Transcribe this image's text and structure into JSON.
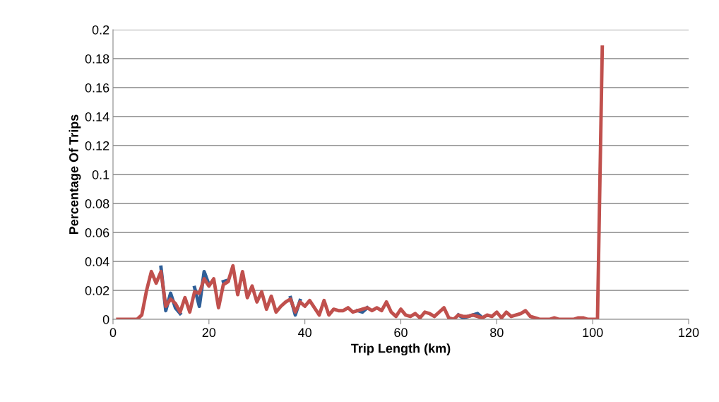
{
  "chart_data": {
    "type": "line",
    "xlabel": "Trip Length (km)",
    "ylabel": "Percentage Of Trips",
    "x": [
      1,
      2,
      3,
      4,
      5,
      6,
      7,
      8,
      9,
      10,
      11,
      12,
      13,
      14,
      15,
      16,
      17,
      18,
      19,
      20,
      21,
      22,
      23,
      24,
      25,
      26,
      27,
      28,
      29,
      30,
      31,
      32,
      33,
      34,
      35,
      36,
      37,
      38,
      39,
      40,
      41,
      42,
      43,
      44,
      45,
      46,
      47,
      48,
      49,
      50,
      51,
      52,
      53,
      54,
      55,
      56,
      57,
      58,
      59,
      60,
      61,
      62,
      63,
      64,
      65,
      66,
      67,
      68,
      69,
      70,
      71,
      72,
      73,
      74,
      75,
      76,
      77,
      78,
      79,
      80,
      81,
      82,
      83,
      84,
      85,
      86,
      87,
      88,
      89,
      90,
      91,
      92,
      93,
      94,
      95,
      96,
      97,
      98,
      99,
      100,
      101,
      102
    ],
    "series": [
      {
        "color": "#2f5f98",
        "values": [
          null,
          null,
          null,
          null,
          null,
          null,
          null,
          null,
          null,
          0.036,
          0.006,
          0.018,
          0.008,
          0.004,
          null,
          null,
          0.022,
          0.009,
          0.033,
          0.024,
          null,
          null,
          0.026,
          0.027,
          null,
          null,
          null,
          null,
          null,
          null,
          null,
          null,
          null,
          null,
          null,
          null,
          0.015,
          0.003,
          0.013,
          null,
          null,
          null,
          null,
          null,
          null,
          null,
          null,
          null,
          null,
          null,
          0.006,
          0.005,
          0.008,
          null,
          null,
          null,
          null,
          null,
          null,
          null,
          null,
          null,
          null,
          null,
          null,
          null,
          null,
          null,
          null,
          null,
          null,
          0.003,
          0.001,
          0.002,
          0.003,
          0.004,
          0.001,
          null,
          null,
          null,
          null,
          null,
          null,
          null,
          null,
          null,
          null,
          null,
          null,
          null,
          null,
          null,
          null,
          null,
          null,
          null,
          null,
          null,
          null,
          null,
          null,
          null
        ]
      },
      {
        "color": "#c0504d",
        "values": [
          0,
          0,
          0,
          0,
          0,
          0.003,
          0.02,
          0.033,
          0.025,
          0.033,
          0.009,
          0.014,
          0.011,
          0.005,
          0.015,
          0.005,
          0.019,
          0.018,
          0.028,
          0.023,
          0.028,
          0.008,
          0.024,
          0.026,
          0.037,
          0.017,
          0.033,
          0.015,
          0.023,
          0.012,
          0.019,
          0.007,
          0.016,
          0.005,
          0.009,
          0.012,
          0.014,
          0.005,
          0.012,
          0.009,
          0.013,
          0.008,
          0.003,
          0.013,
          0.003,
          0.007,
          0.006,
          0.006,
          0.008,
          0.005,
          0.006,
          0.007,
          0.008,
          0.006,
          0.008,
          0.006,
          0.012,
          0.005,
          0.002,
          0.007,
          0.003,
          0.002,
          0.004,
          0.001,
          0.005,
          0.004,
          0.002,
          0.005,
          0.008,
          0.001,
          0,
          0.003,
          0.002,
          0.002,
          0.003,
          0.002,
          0.001,
          0.003,
          0.002,
          0.005,
          0.001,
          0.005,
          0.002,
          0.003,
          0.004,
          0.006,
          0.002,
          0.001,
          0,
          0,
          0,
          0.001,
          0,
          0,
          0,
          0,
          0.001,
          0.001,
          0,
          0,
          0,
          0.188
        ]
      }
    ],
    "xlim": [
      0,
      120
    ],
    "xticks": [
      0,
      20,
      40,
      60,
      80,
      100,
      120
    ],
    "ylim": [
      0,
      0.2
    ],
    "yticks": [
      0,
      0.02,
      0.04,
      0.06,
      0.08,
      0.1,
      0.12,
      0.14,
      0.16,
      0.18,
      0.2
    ],
    "grid": "y",
    "legend": false,
    "marker": "none",
    "line_style": "solid"
  }
}
